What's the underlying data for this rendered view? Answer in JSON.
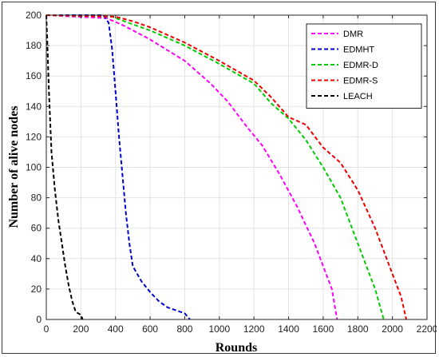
{
  "chart_data": {
    "type": "line",
    "title": "",
    "xlabel": "Rounds",
    "ylabel": "Number of alive nodes",
    "xlim": [
      0,
      2200
    ],
    "ylim": [
      0,
      200
    ],
    "xticks": [
      0,
      200,
      400,
      600,
      800,
      1000,
      1200,
      1400,
      1600,
      1800,
      2000,
      2200
    ],
    "yticks": [
      0,
      20,
      40,
      60,
      80,
      100,
      120,
      140,
      160,
      180,
      200
    ],
    "grid": true,
    "legend_position": "top-right",
    "series": [
      {
        "name": "DMR",
        "color": "#ff00ff",
        "x": [
          0,
          350,
          450,
          600,
          800,
          950,
          1050,
          1150,
          1250,
          1350,
          1450,
          1500,
          1550,
          1600,
          1650,
          1680
        ],
        "y": [
          200,
          198,
          193,
          184,
          170,
          155,
          143,
          128,
          114,
          95,
          74,
          62,
          50,
          35,
          20,
          0
        ]
      },
      {
        "name": "EDMHT",
        "color": "#0000cc",
        "x": [
          0,
          330,
          360,
          380,
          400,
          420,
          440,
          460,
          480,
          500,
          550,
          600,
          650,
          700,
          800,
          830
        ],
        "y": [
          200,
          200,
          195,
          178,
          150,
          120,
          95,
          70,
          50,
          35,
          25,
          18,
          12,
          8,
          4,
          0
        ]
      },
      {
        "name": "EDMR-D",
        "color": "#00cc00",
        "x": [
          0,
          380,
          450,
          600,
          800,
          1000,
          1200,
          1300,
          1400,
          1500,
          1600,
          1700,
          1800,
          1850,
          1900,
          1950
        ],
        "y": [
          200,
          199,
          196,
          190,
          180,
          168,
          155,
          142,
          132,
          118,
          100,
          80,
          50,
          35,
          20,
          0
        ]
      },
      {
        "name": "EDMR-S",
        "color": "#ee0000",
        "x": [
          0,
          400,
          500,
          600,
          800,
          1000,
          1200,
          1300,
          1400,
          1500,
          1600,
          1700,
          1800,
          1900,
          1950,
          2000,
          2050,
          2080
        ],
        "y": [
          200,
          199,
          196,
          192,
          182,
          170,
          157,
          146,
          133,
          128,
          113,
          103,
          85,
          60,
          45,
          30,
          15,
          0
        ]
      },
      {
        "name": "LEACH",
        "color": "#000000",
        "x": [
          0,
          5,
          15,
          30,
          50,
          70,
          90,
          110,
          130,
          150,
          170,
          200,
          210
        ],
        "y": [
          200,
          185,
          150,
          110,
          85,
          65,
          50,
          35,
          22,
          12,
          5,
          3,
          0
        ]
      }
    ]
  }
}
